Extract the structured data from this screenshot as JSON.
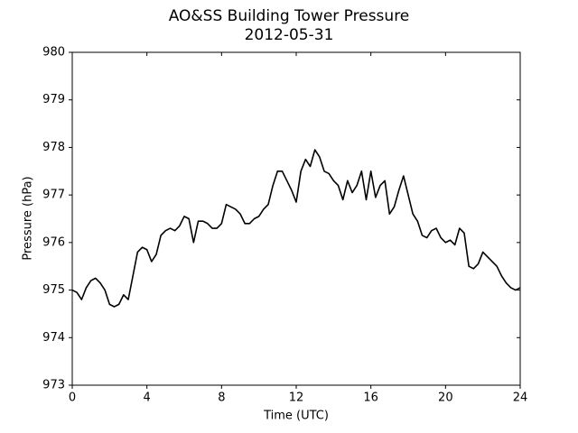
{
  "chart_data": {
    "type": "line",
    "title": "AO&SS Building Tower Pressure",
    "subtitle": "2012-05-31",
    "x_label": "Time (UTC)",
    "y_label": "Pressure (hPa)",
    "xlim": [
      0,
      24
    ],
    "xticks": [
      0,
      4,
      8,
      12,
      16,
      20,
      24
    ],
    "ylim": [
      973,
      980
    ],
    "yticks": [
      973,
      974,
      975,
      976,
      977,
      978,
      979,
      980
    ],
    "grid": false,
    "series": [
      {
        "color": "#000000",
        "x": [
          0,
          0.25,
          0.5,
          0.75,
          1,
          1.25,
          1.5,
          1.75,
          2,
          2.25,
          2.5,
          2.75,
          3,
          3.25,
          3.5,
          3.75,
          4,
          4.25,
          4.5,
          4.75,
          5,
          5.25,
          5.5,
          5.75,
          6,
          6.25,
          6.5,
          6.75,
          7,
          7.25,
          7.5,
          7.75,
          8,
          8.25,
          8.5,
          8.75,
          9,
          9.25,
          9.5,
          9.75,
          10,
          10.25,
          10.5,
          10.75,
          11,
          11.25,
          11.5,
          11.75,
          12,
          12.25,
          12.5,
          12.75,
          13,
          13.25,
          13.5,
          13.75,
          14,
          14.25,
          14.5,
          14.75,
          15,
          15.25,
          15.5,
          15.75,
          16,
          16.25,
          16.5,
          16.75,
          17,
          17.25,
          17.5,
          17.75,
          18,
          18.25,
          18.5,
          18.75,
          19,
          19.25,
          19.5,
          19.75,
          20,
          20.25,
          20.5,
          20.75,
          21,
          21.25,
          21.5,
          21.75,
          22,
          22.25,
          22.5,
          22.75,
          23,
          23.25,
          23.5,
          23.75,
          24
        ],
        "values": [
          975.0,
          974.95,
          974.8,
          975.05,
          975.2,
          975.25,
          975.15,
          975.0,
          974.7,
          974.65,
          974.7,
          974.9,
          974.8,
          975.3,
          975.8,
          975.9,
          975.85,
          975.6,
          975.75,
          976.15,
          976.25,
          976.3,
          976.25,
          976.35,
          976.55,
          976.5,
          976.0,
          976.45,
          976.45,
          976.4,
          976.3,
          976.3,
          976.4,
          976.8,
          976.75,
          976.7,
          976.6,
          976.4,
          976.4,
          976.5,
          976.55,
          976.7,
          976.8,
          977.2,
          977.5,
          977.5,
          977.3,
          977.1,
          976.85,
          977.5,
          977.75,
          977.6,
          977.95,
          977.8,
          977.5,
          977.45,
          977.3,
          977.2,
          976.9,
          977.3,
          977.05,
          977.2,
          977.5,
          976.9,
          977.5,
          976.95,
          977.2,
          977.3,
          976.6,
          976.75,
          977.1,
          977.4,
          977.0,
          976.6,
          976.45,
          976.15,
          976.1,
          976.25,
          976.3,
          976.1,
          976.0,
          976.05,
          975.95,
          976.3,
          976.2,
          975.5,
          975.45,
          975.55,
          975.8,
          975.7,
          975.6,
          975.5,
          975.3,
          975.15,
          975.05,
          975.0,
          975.05
        ]
      }
    ]
  }
}
